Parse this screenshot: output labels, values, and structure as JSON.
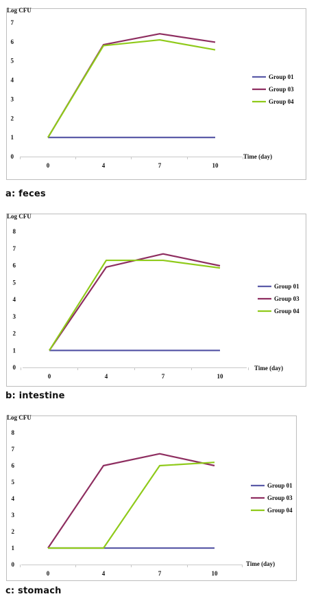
{
  "chart_data": [
    {
      "type": "line",
      "caption": "a: feces",
      "ylabel": "Log CFU",
      "xlabel": "Time (day)",
      "categories": [
        "0",
        "4",
        "7",
        "10"
      ],
      "ylim": [
        0,
        7
      ],
      "y_ticks": [
        0,
        1,
        2,
        3,
        4,
        5,
        6,
        7
      ],
      "legend_position": "right",
      "series": [
        {
          "name": "Group 01",
          "color": "#5b5ba8",
          "values": [
            1,
            1,
            1,
            1
          ]
        },
        {
          "name": "Group 03",
          "color": "#8e2e60",
          "values": [
            1,
            5.85,
            6.42,
            5.98
          ]
        },
        {
          "name": "Group 04",
          "color": "#8fca1a",
          "values": [
            1,
            5.8,
            6.1,
            5.58
          ]
        }
      ]
    },
    {
      "type": "line",
      "caption": "b: intestine",
      "ylabel": "Log CFU",
      "xlabel": "Time (day)",
      "categories": [
        "0",
        "4",
        "7",
        "10"
      ],
      "ylim": [
        0,
        8
      ],
      "y_ticks": [
        0,
        1,
        2,
        3,
        4,
        5,
        6,
        7,
        8
      ],
      "legend_position": "right",
      "series": [
        {
          "name": "Group 01",
          "color": "#5b5ba8",
          "values": [
            1,
            1,
            1,
            1
          ]
        },
        {
          "name": "Group 03",
          "color": "#8e2e60",
          "values": [
            1,
            5.9,
            6.68,
            5.98
          ]
        },
        {
          "name": "Group 04",
          "color": "#8fca1a",
          "values": [
            1,
            6.3,
            6.3,
            5.85
          ]
        }
      ]
    },
    {
      "type": "line",
      "caption": "c: stomach",
      "ylabel": "Log CFU",
      "xlabel": "Time (day)",
      "categories": [
        "0",
        "4",
        "7",
        "10"
      ],
      "ylim": [
        0,
        8
      ],
      "y_ticks": [
        0,
        1,
        2,
        3,
        4,
        5,
        6,
        7,
        8
      ],
      "legend_position": "right",
      "series": [
        {
          "name": "Group 01",
          "color": "#5b5ba8",
          "values": [
            1,
            1,
            1,
            1
          ]
        },
        {
          "name": "Group 03",
          "color": "#8e2e60",
          "values": [
            1,
            6,
            6.72,
            6
          ]
        },
        {
          "name": "Group 04",
          "color": "#8fca1a",
          "values": [
            1,
            1,
            6,
            6.2
          ]
        }
      ]
    }
  ]
}
